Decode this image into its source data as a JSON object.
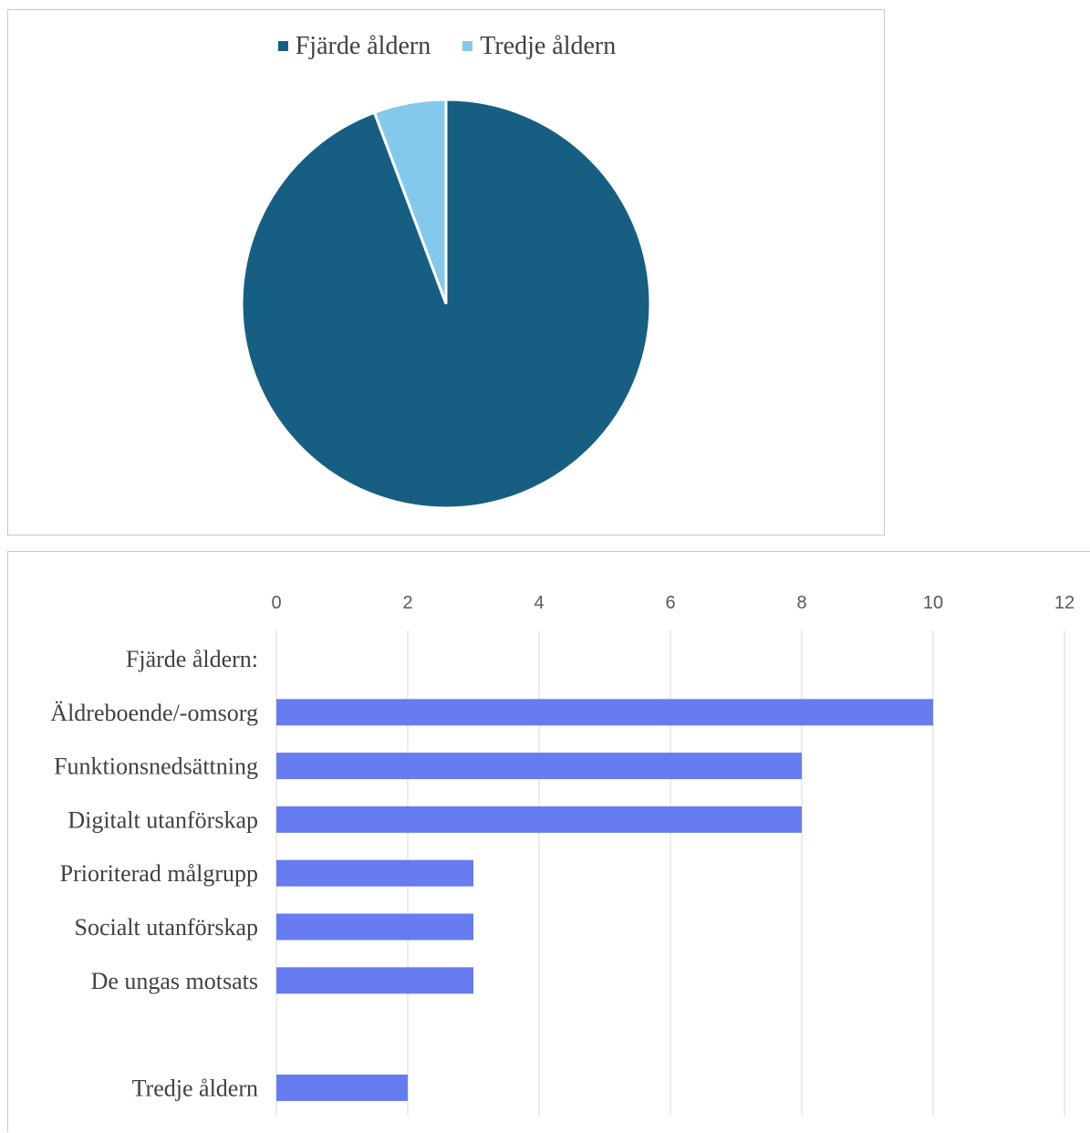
{
  "chart_data": [
    {
      "type": "pie",
      "title": "",
      "legend_position": "top",
      "slices": [
        {
          "label": "Fjärde åldern",
          "value": 94.3,
          "color": "#175f82"
        },
        {
          "label": "Tredje åldern",
          "value": 5.7,
          "color": "#83c9ec"
        }
      ]
    },
    {
      "type": "bar",
      "orientation": "horizontal",
      "title": "",
      "xlabel": "",
      "ylabel": "",
      "xlim": [
        0,
        12
      ],
      "ticks": [
        "0",
        "2",
        "4",
        "6",
        "8",
        "10",
        "12"
      ],
      "grid": true,
      "bar_color": "#667cf0",
      "categories": [
        "Fjärde åldern:",
        "Äldreboende/-omsorg",
        "Funktionsnedsättning",
        "Digitalt utanförskap",
        "Prioriterad målgrupp",
        "Socialt utanförskap",
        "De ungas motsats",
        "",
        "Tredje åldern"
      ],
      "values": [
        null,
        10,
        8,
        8,
        3,
        3,
        3,
        null,
        2
      ]
    }
  ]
}
